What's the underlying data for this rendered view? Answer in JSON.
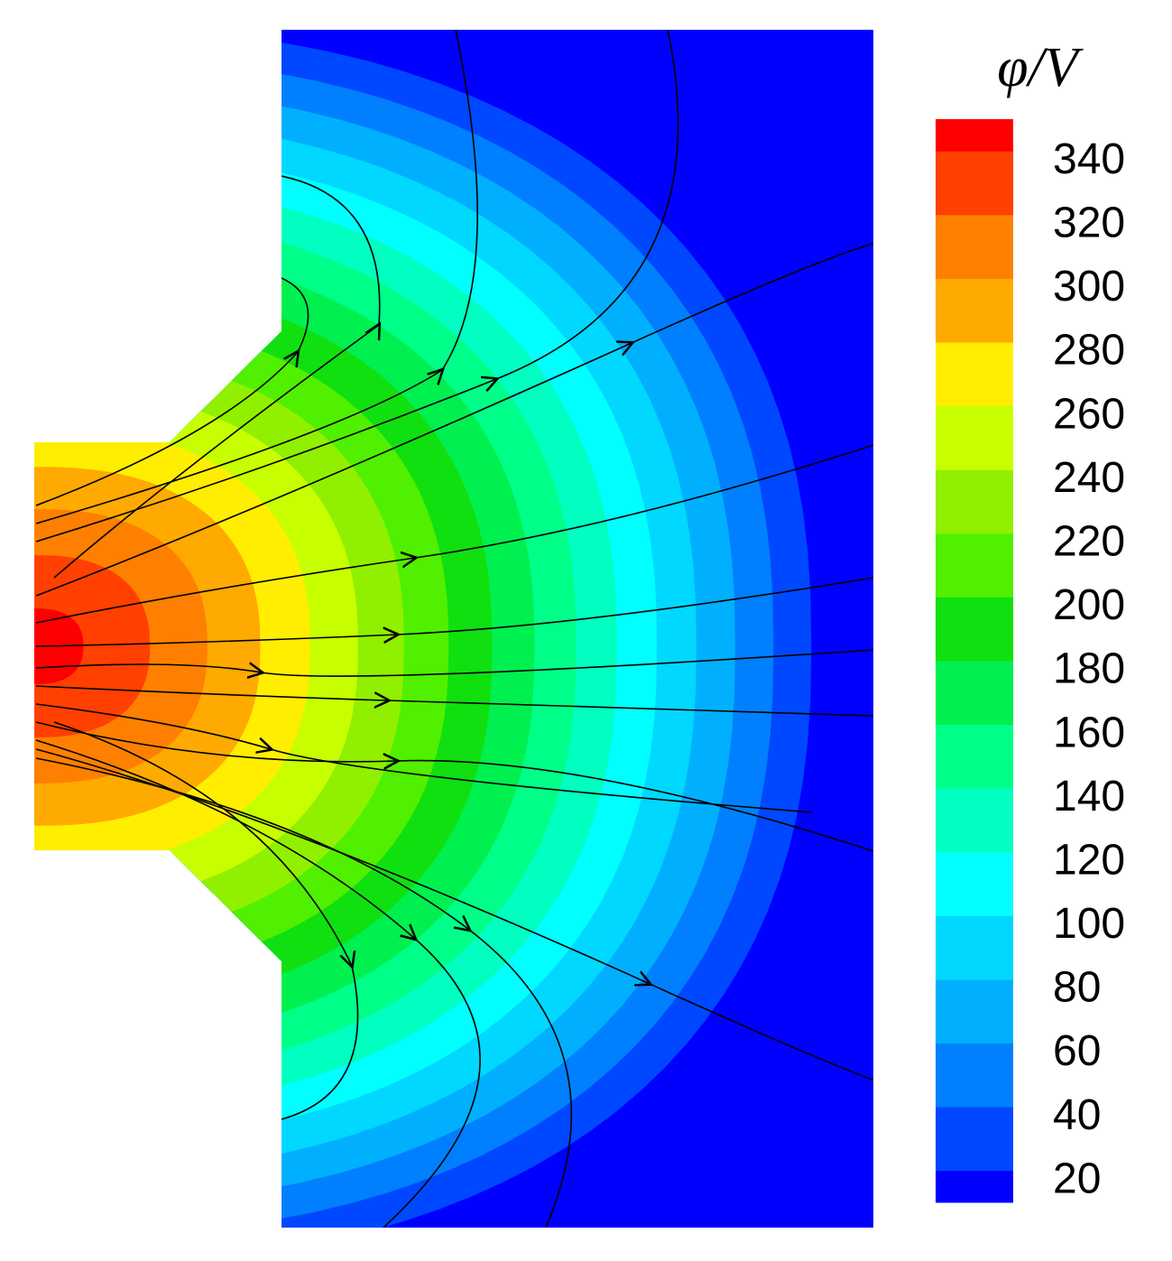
{
  "chart_data": {
    "type": "contour",
    "title": "φ/V",
    "clim": [
      10,
      350
    ],
    "yticks": [
      20,
      40,
      60,
      80,
      100,
      120,
      140,
      160,
      180,
      200,
      220,
      240,
      260,
      280,
      300,
      320,
      340
    ],
    "colors": [
      "#0000ff",
      "#0048ff",
      "#0080ff",
      "#00b0ff",
      "#00d8ff",
      "#00ffff",
      "#00ffc0",
      "#00ff88",
      "#00f050",
      "#10e010",
      "#50f000",
      "#90f000",
      "#c8ff00",
      "#ffee00",
      "#ffaa00",
      "#ff8000",
      "#ff4000",
      "#ff0000"
    ]
  }
}
